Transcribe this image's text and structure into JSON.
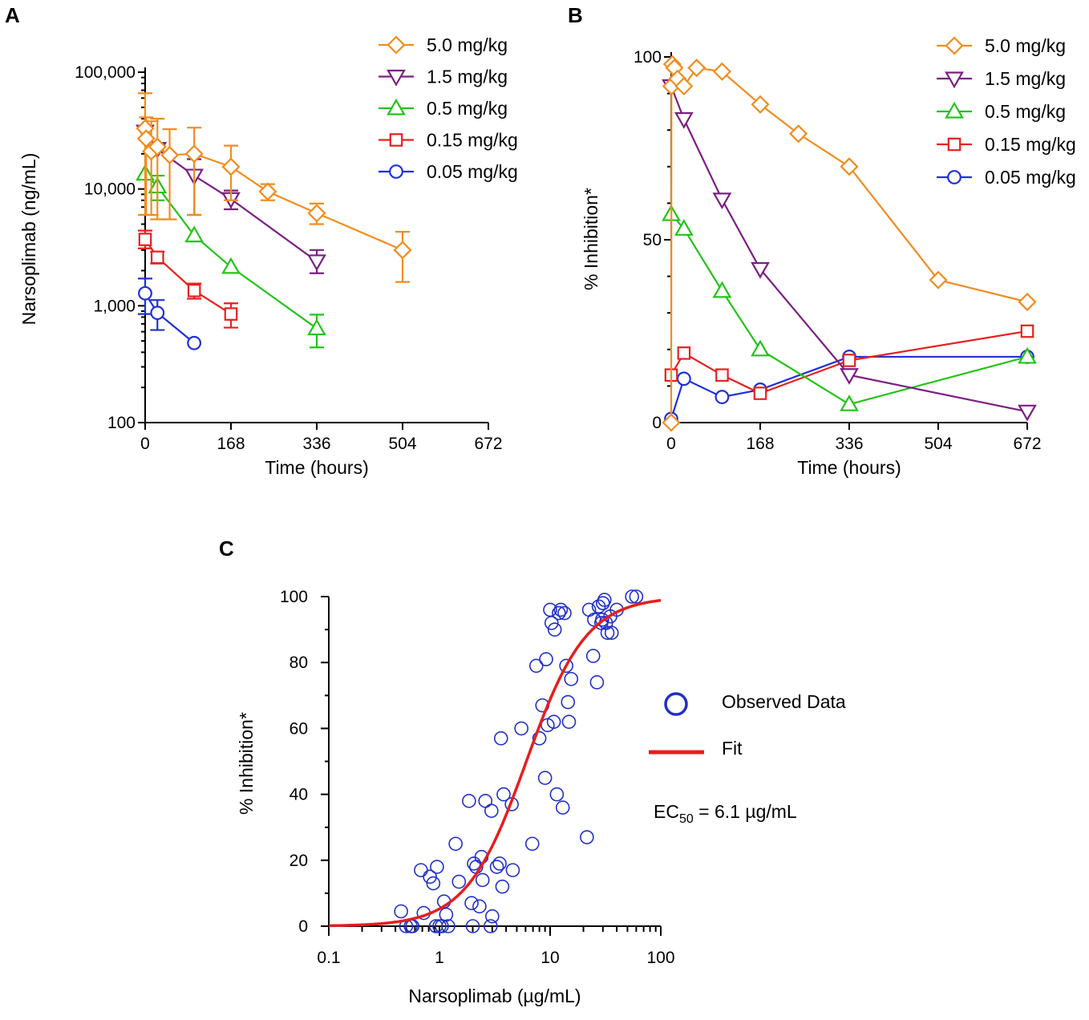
{
  "colors": {
    "dose_5_0": "#F28C1E",
    "dose_1_5": "#7B1F82",
    "dose_0_5": "#22C41A",
    "dose_0_15": "#E8201F",
    "dose_0_05": "#1F31D9",
    "observed": "#2030C8",
    "fit": "#E81D1D"
  },
  "chart_data": [
    {
      "id": "A",
      "panel_label": "A",
      "type": "line",
      "y_scale": "log",
      "xlabel": "Time (hours)",
      "ylabel": "Narsoplimab (ng/mL)",
      "xlim": [
        0,
        672
      ],
      "ylim": [
        100,
        100000
      ],
      "x_ticks": [
        0,
        168,
        336,
        504,
        672
      ],
      "x_tick_labels": [
        "0",
        "168",
        "336",
        "504",
        "672"
      ],
      "y_ticks": [
        100,
        1000,
        10000,
        100000
      ],
      "y_tick_labels": [
        "100",
        "1,000",
        "10,000",
        "100,000"
      ],
      "legend_position": "top-right",
      "series": [
        {
          "name": "5.0 mg/kg",
          "marker": "diamond",
          "color_key": "dose_5_0",
          "x": [
            0,
            2,
            12,
            24,
            48,
            96,
            168,
            240,
            336,
            504
          ],
          "y": [
            33000,
            27000,
            21000,
            23000,
            19500,
            20000,
            15500,
            9500,
            6200,
            3000
          ],
          "err_lo": [
            27000,
            21000,
            15000,
            17500,
            14000,
            14000,
            7500,
            1500,
            1200,
            1400
          ],
          "err_hi": [
            33000,
            14000,
            17000,
            17000,
            13000,
            13500,
            8000,
            1500,
            1300,
            1300
          ]
        },
        {
          "name": "1.5 mg/kg",
          "marker": "triangle-down",
          "color_key": "dose_1_5",
          "x": [
            0,
            24,
            96,
            168,
            336
          ],
          "y": [
            31000,
            22000,
            13000,
            8200,
            2400
          ],
          "err_lo": [
            0,
            0,
            7000,
            1500,
            500
          ],
          "err_hi": [
            0,
            0,
            5000,
            1500,
            600
          ]
        },
        {
          "name": "0.5 mg/kg",
          "marker": "triangle-up",
          "color_key": "dose_0_5",
          "x": [
            0,
            24,
            96,
            168,
            336
          ],
          "y": [
            13500,
            10500,
            4000,
            2150,
            640
          ],
          "err_lo": [
            0,
            2500,
            0,
            0,
            200
          ],
          "err_hi": [
            0,
            2500,
            0,
            0,
            200
          ]
        },
        {
          "name": "0.15 mg/kg",
          "marker": "square",
          "color_key": "dose_0_15",
          "x": [
            0,
            24,
            96,
            168
          ],
          "y": [
            3700,
            2600,
            1350,
            850
          ],
          "err_lo": [
            600,
            300,
            200,
            200
          ],
          "err_hi": [
            700,
            300,
            200,
            200
          ]
        },
        {
          "name": "0.05 mg/kg",
          "marker": "circle",
          "color_key": "dose_0_05",
          "x": [
            0,
            24,
            96
          ],
          "y": [
            1280,
            870,
            480
          ],
          "err_lo": [
            430,
            250,
            0
          ],
          "err_hi": [
            430,
            250,
            0
          ]
        }
      ]
    },
    {
      "id": "B",
      "panel_label": "B",
      "type": "line",
      "y_scale": "linear",
      "xlabel": "Time (hours)",
      "ylabel": "% Inhibition*",
      "xlim": [
        0,
        672
      ],
      "ylim": [
        0,
        100
      ],
      "x_ticks": [
        0,
        168,
        336,
        504,
        672
      ],
      "x_tick_labels": [
        "0",
        "168",
        "336",
        "504",
        "672"
      ],
      "y_ticks": [
        0,
        50,
        100
      ],
      "y_tick_labels": [
        "0",
        "50",
        "100"
      ],
      "legend_position": "top-right",
      "series": [
        {
          "name": "5.0 mg/kg",
          "marker": "diamond",
          "color_key": "dose_5_0",
          "x": [
            0,
            0.5,
            2,
            6,
            12,
            24,
            48,
            96,
            168,
            240,
            336,
            504,
            672
          ],
          "y": [
            0,
            92,
            98,
            97,
            94,
            92,
            97,
            96,
            87,
            79,
            70,
            39,
            33
          ]
        },
        {
          "name": "1.5 mg/kg",
          "marker": "triangle-down",
          "color_key": "dose_1_5",
          "x": [
            0,
            24,
            96,
            168,
            336,
            672
          ],
          "y": [
            92,
            83,
            61,
            42,
            13,
            3
          ]
        },
        {
          "name": "0.5 mg/kg",
          "marker": "triangle-up",
          "color_key": "dose_0_5",
          "x": [
            0,
            24,
            96,
            168,
            336,
            672
          ],
          "y": [
            57,
            53,
            36,
            20,
            5,
            18
          ]
        },
        {
          "name": "0.15 mg/kg",
          "marker": "square",
          "color_key": "dose_0_15",
          "x": [
            0,
            24,
            96,
            168,
            336,
            672
          ],
          "y": [
            13,
            19,
            13,
            8,
            17,
            25
          ]
        },
        {
          "name": "0.05 mg/kg",
          "marker": "circle",
          "color_key": "dose_0_05",
          "x": [
            0,
            24,
            96,
            168,
            336,
            672
          ],
          "y": [
            1,
            12,
            7,
            9,
            18,
            18
          ]
        }
      ]
    },
    {
      "id": "C",
      "panel_label": "C",
      "type": "scatter",
      "x_scale": "log",
      "xlabel": "Narsoplimab (µg/mL)",
      "ylabel": "% Inhibition*",
      "xlim": [
        0.1,
        100
      ],
      "ylim": [
        0,
        100
      ],
      "x_ticks": [
        0.1,
        1,
        10,
        100
      ],
      "x_tick_labels": [
        "0.1",
        "1",
        "10",
        "100"
      ],
      "y_ticks": [
        0,
        20,
        40,
        60,
        80,
        100
      ],
      "y_tick_labels": [
        "0",
        "20",
        "40",
        "60",
        "80",
        "100"
      ],
      "legend": {
        "observed_label": "Observed Data",
        "fit_label": "Fit",
        "position": "right"
      },
      "annotation": {
        "prefix": "EC",
        "subscript": "50",
        "suffix": " = 6.1 µg/mL"
      },
      "fit": {
        "model": "emax",
        "ec50": 6.1,
        "emax": 100,
        "hill": 1.6
      },
      "observed": {
        "x": [
          0.45,
          0.5,
          0.55,
          0.57,
          0.68,
          0.72,
          0.82,
          0.88,
          0.93,
          0.95,
          1.0,
          1.05,
          1.1,
          1.15,
          1.2,
          1.4,
          1.5,
          1.85,
          1.95,
          2.0,
          2.05,
          2.15,
          2.3,
          2.4,
          2.45,
          2.6,
          2.9,
          2.95,
          3.0,
          3.3,
          3.5,
          3.6,
          3.7,
          3.8,
          4.5,
          4.6,
          5.5,
          6.9,
          7.5,
          8.0,
          8.5,
          9.0,
          9.2,
          9.5,
          10.0,
          10.3,
          10.8,
          11.0,
          11.5,
          12.0,
          12.5,
          13.0,
          13.5,
          14.0,
          14.5,
          14.8,
          15.5,
          21.5,
          22.5,
          24.5,
          25.0,
          26.5,
          27.5,
          29.0,
          29.5,
          30.0,
          31.0,
          32.0,
          33.0,
          35.0,
          36.0,
          40.0,
          55.0,
          60.0
        ],
        "y": [
          4.5,
          0,
          0,
          0,
          17,
          4,
          15,
          13,
          0,
          18,
          0,
          0,
          7.5,
          3.5,
          0,
          25,
          13.5,
          38,
          7,
          0,
          19,
          18,
          6,
          21,
          14,
          38,
          0,
          35,
          3,
          18,
          19,
          57,
          12,
          40,
          37,
          17,
          60,
          25,
          79,
          57,
          67,
          45,
          81,
          61,
          96,
          92,
          62,
          90,
          40,
          95,
          96,
          36,
          95,
          79,
          68,
          62,
          75,
          27,
          96,
          82,
          93,
          74,
          97,
          92,
          93,
          98,
          99,
          92,
          89,
          94,
          89,
          96,
          100,
          100
        ]
      }
    }
  ]
}
